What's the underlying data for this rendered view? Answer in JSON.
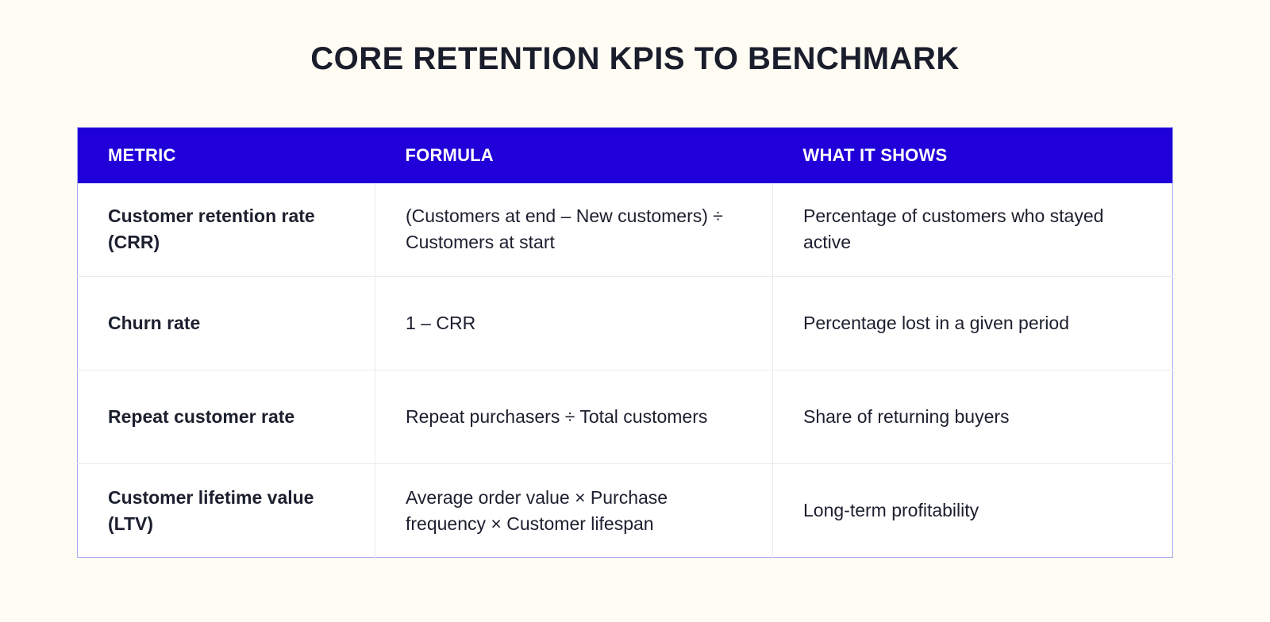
{
  "title": "CORE RETENTION KPIS TO BENCHMARK",
  "colors": {
    "background": "#fffcf4",
    "header_bg": "#1f00d8",
    "header_text": "#ffffff",
    "table_border": "#a7a8f0",
    "row_divider": "#ebebee",
    "text": "#1c1f2e"
  },
  "table": {
    "headers": [
      "METRIC",
      "FORMULA",
      "WHAT IT SHOWS"
    ],
    "rows": [
      {
        "metric": "Customer retention rate (CRR)",
        "formula": "(Customers at end – New customers) ÷ Customers at start",
        "shows": "Percentage of customers who stayed active"
      },
      {
        "metric": "Churn rate",
        "formula": "1 – CRR",
        "shows": "Percentage lost in a given period"
      },
      {
        "metric": "Repeat customer rate",
        "formula": "Repeat purchasers ÷ Total customers",
        "shows": "Share of returning buyers"
      },
      {
        "metric": "Customer lifetime value (LTV)",
        "formula": "Average order value × Purchase frequency × Customer lifespan",
        "shows": "Long-term profitability"
      }
    ]
  }
}
